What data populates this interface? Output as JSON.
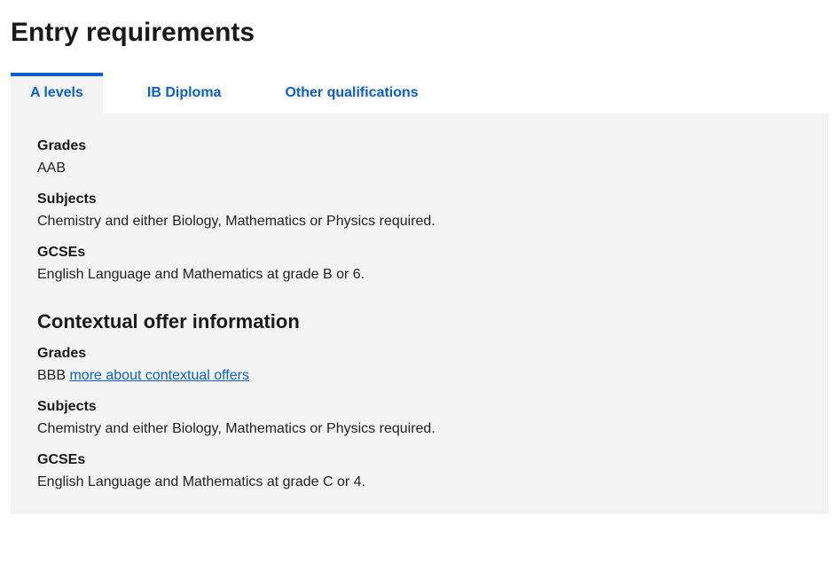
{
  "title": "Entry requirements",
  "colors": {
    "accent": "#0b5fce",
    "panel_bg": "#f3f3f3",
    "text": "#222222"
  },
  "tabs": [
    {
      "label": "A levels",
      "active": true
    },
    {
      "label": "IB Diploma",
      "active": false
    },
    {
      "label": "Other qualifications",
      "active": false
    }
  ],
  "standard": {
    "grades_label": "Grades",
    "grades_value": "AAB",
    "subjects_label": "Subjects",
    "subjects_value": "Chemistry and either Biology, Mathematics or Physics required.",
    "gcses_label": "GCSEs",
    "gcses_value": "English Language and Mathematics at grade B or 6."
  },
  "contextual": {
    "heading": "Contextual offer information",
    "grades_label": "Grades",
    "grades_prefix": "BBB ",
    "grades_link": "more about contextual offers",
    "subjects_label": "Subjects",
    "subjects_value": "Chemistry and either Biology, Mathematics or Physics required.",
    "gcses_label": "GCSEs",
    "gcses_value": "English Language and Mathematics at grade C or 4."
  }
}
